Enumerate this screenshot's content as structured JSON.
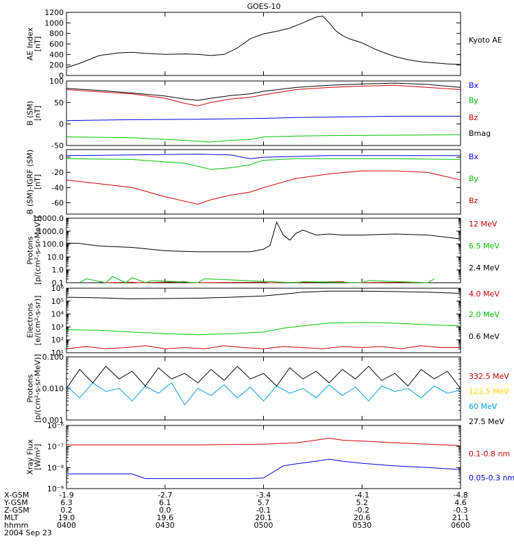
{
  "title": "GOES-10",
  "date_label": "2004 Sep 23",
  "colors": {
    "black": "#000000",
    "red": "#cc0000",
    "green": "#00c000",
    "blue": "#0000dd",
    "yellow": "#ffd700",
    "cyan": "#00a0e0"
  },
  "chart_data": [
    {
      "id": "ae",
      "type": "line",
      "ylabel": "AE Index\n[nT]",
      "yscale": "linear",
      "ylim": [
        0,
        1200
      ],
      "yticks": [
        0,
        200,
        400,
        600,
        800,
        1000,
        1200
      ],
      "ytick_labels": [
        "0",
        "200",
        "400",
        "600",
        "800",
        "1000",
        "1200"
      ],
      "series": [
        {
          "name": "Kyoto AE",
          "color": "black",
          "x": [
            0,
            2,
            5,
            8,
            10,
            12,
            15,
            18,
            20,
            22,
            24,
            26,
            28,
            30,
            32,
            34,
            36,
            38,
            39,
            40,
            41,
            42,
            43,
            44,
            45,
            46,
            47,
            48,
            50,
            52,
            54,
            56,
            58,
            60
          ],
          "y": [
            150,
            230,
            380,
            430,
            440,
            420,
            400,
            410,
            400,
            380,
            400,
            520,
            700,
            790,
            840,
            900,
            1000,
            1110,
            1130,
            1000,
            850,
            760,
            700,
            660,
            620,
            560,
            500,
            450,
            360,
            300,
            260,
            240,
            220,
            210
          ]
        }
      ]
    },
    {
      "id": "b",
      "type": "line",
      "ylabel": "B (SM)\n[nT]",
      "yscale": "linear",
      "ylim": [
        -50,
        100
      ],
      "yticks": [
        -50,
        0,
        50,
        100
      ],
      "ytick_labels": [
        "-50",
        "0",
        "50",
        "100"
      ],
      "series": [
        {
          "name": "Bx",
          "color": "blue",
          "x": [
            0,
            10,
            20,
            25,
            30,
            35,
            40,
            50,
            60
          ],
          "y": [
            8,
            10,
            11,
            12,
            13,
            15,
            16,
            18,
            18
          ]
        },
        {
          "name": "By",
          "color": "green",
          "x": [
            0,
            10,
            18,
            22,
            25,
            28,
            30,
            35,
            40,
            50,
            60
          ],
          "y": [
            -30,
            -32,
            -38,
            -42,
            -38,
            -36,
            -30,
            -28,
            -27,
            -26,
            -25
          ]
        },
        {
          "name": "Bz",
          "color": "red",
          "x": [
            0,
            5,
            10,
            15,
            18,
            20,
            22,
            25,
            28,
            30,
            35,
            40,
            45,
            50,
            55,
            60
          ],
          "y": [
            80,
            75,
            70,
            60,
            48,
            42,
            50,
            58,
            62,
            68,
            80,
            85,
            88,
            90,
            85,
            80
          ]
        },
        {
          "name": "Bmag",
          "color": "black",
          "x": [
            0,
            5,
            10,
            15,
            18,
            20,
            22,
            25,
            28,
            30,
            35,
            40,
            45,
            50,
            55,
            60
          ],
          "y": [
            83,
            78,
            72,
            65,
            58,
            55,
            60,
            66,
            70,
            76,
            85,
            90,
            93,
            95,
            92,
            85
          ]
        }
      ]
    },
    {
      "id": "bdiff",
      "type": "line",
      "ylabel": "B (SM)-IGRF (SM)\n[nT]",
      "yscale": "linear",
      "ylim": [
        -75,
        10
      ],
      "yticks": [
        -60,
        -40,
        -20,
        0
      ],
      "ytick_labels": [
        "-60",
        "-40",
        "-20",
        "0"
      ],
      "series": [
        {
          "name": "Bx",
          "color": "blue",
          "x": [
            0,
            10,
            20,
            25,
            28,
            30,
            35,
            40,
            50,
            60
          ],
          "y": [
            2,
            3,
            4,
            3,
            -2,
            0,
            1,
            2,
            2,
            2
          ]
        },
        {
          "name": "By",
          "color": "green",
          "x": [
            0,
            10,
            18,
            22,
            25,
            28,
            30,
            35,
            40,
            50,
            60
          ],
          "y": [
            -2,
            -3,
            -8,
            -16,
            -14,
            -10,
            -4,
            -2,
            -2,
            -2,
            -3
          ]
        },
        {
          "name": "Bz",
          "color": "red",
          "x": [
            0,
            5,
            10,
            15,
            18,
            20,
            22,
            25,
            28,
            30,
            35,
            40,
            45,
            50,
            55,
            60
          ],
          "y": [
            -30,
            -35,
            -40,
            -52,
            -58,
            -62,
            -56,
            -50,
            -46,
            -40,
            -28,
            -22,
            -18,
            -18,
            -20,
            -30
          ]
        }
      ]
    },
    {
      "id": "protons",
      "type": "line",
      "ylabel": "Protons\n[p/(cm²-s-sr-MeV)]",
      "yscale": "log",
      "ylim": [
        0.1,
        10000
      ],
      "yticks": [
        0.1,
        1,
        10,
        100,
        1000,
        10000
      ],
      "ytick_labels": [
        "0.1",
        "1.0",
        "10.0",
        "100.0",
        "1000.0",
        "10000.0"
      ],
      "series": [
        {
          "name": "12 MeV",
          "color": "red",
          "x": [
            5,
            6,
            10,
            11,
            18,
            19,
            30,
            31,
            42,
            43,
            52,
            53
          ],
          "y": [
            0.12,
            0.1,
            0.11,
            0.1,
            0.12,
            0.1,
            0.11,
            0.1,
            0.12,
            0.1,
            0.11,
            0.1
          ]
        },
        {
          "name": "6.5 MeV",
          "color": "green",
          "x": [
            2,
            3,
            6,
            7,
            9,
            10,
            12,
            13,
            20,
            21,
            35,
            36,
            45,
            46,
            55,
            56
          ],
          "y": [
            0.1,
            0.2,
            0.1,
            0.3,
            0.1,
            0.25,
            0.1,
            0.15,
            0.1,
            0.2,
            0.1,
            0.12,
            0.1,
            0.15,
            0.1,
            0.2
          ]
        },
        {
          "name": "2.4 MeV",
          "color": "black",
          "x": [
            0,
            2,
            5,
            8,
            10,
            15,
            20,
            25,
            28,
            30,
            31,
            32,
            33,
            34,
            35,
            36,
            38,
            40,
            42,
            45,
            50,
            55,
            60
          ],
          "y": [
            120,
            110,
            70,
            60,
            55,
            30,
            25,
            25,
            25,
            40,
            80,
            5000,
            500,
            200,
            700,
            1200,
            500,
            600,
            500,
            500,
            600,
            500,
            250
          ]
        }
      ]
    },
    {
      "id": "electrons",
      "type": "line",
      "ylabel": "Electrons\n[e/(cm²-s-sr)]",
      "yscale": "log",
      "ylim": [
        10,
        1000000
      ],
      "yticks": [
        10,
        100,
        1000,
        10000,
        100000,
        1000000
      ],
      "ytick_labels": [
        "10¹",
        "10²",
        "10³",
        "10⁴",
        "10⁵",
        "10⁶"
      ],
      "series": [
        {
          "name": "4.0 MeV",
          "color": "red",
          "x": [
            0,
            3,
            6,
            9,
            12,
            15,
            18,
            21,
            24,
            27,
            30,
            33,
            36,
            39,
            42,
            45,
            48,
            51,
            54,
            57,
            60
          ],
          "y": [
            20,
            30,
            20,
            25,
            35,
            20,
            25,
            20,
            35,
            25,
            20,
            30,
            25,
            20,
            30,
            25,
            30,
            20,
            35,
            25,
            25
          ]
        },
        {
          "name": "2.0 MeV",
          "color": "green",
          "x": [
            0,
            5,
            10,
            15,
            20,
            25,
            30,
            33,
            36,
            40,
            45,
            50,
            55,
            60
          ],
          "y": [
            600,
            550,
            400,
            300,
            250,
            300,
            400,
            800,
            1200,
            2000,
            2200,
            2000,
            1500,
            1200
          ]
        },
        {
          "name": "0.6 MeV",
          "color": "black",
          "x": [
            0,
            5,
            10,
            15,
            20,
            25,
            30,
            33,
            36,
            40,
            45,
            50,
            55,
            60
          ],
          "y": [
            200000,
            180000,
            150000,
            160000,
            170000,
            200000,
            250000,
            350000,
            500000,
            600000,
            600000,
            550000,
            500000,
            400000
          ]
        }
      ]
    },
    {
      "id": "hiprotons",
      "type": "line",
      "ylabel": "Protons\n[p/(cm²-s-sr-MeV)]",
      "yscale": "log",
      "ylim": [
        0.001,
        0.1
      ],
      "yticks": [
        0.001,
        0.01,
        0.1
      ],
      "ytick_labels": [
        "0.001",
        "0.010",
        "0.100"
      ],
      "series": [
        {
          "name": "332.5 MeV",
          "color": "red",
          "x": [],
          "y": []
        },
        {
          "name": "122.5 MeV",
          "color": "yellow",
          "x": [],
          "y": []
        },
        {
          "name": "60 MeV",
          "color": "cyan",
          "x": [
            0,
            2,
            4,
            6,
            8,
            10,
            12,
            14,
            16,
            18,
            20,
            22,
            24,
            26,
            28,
            30,
            32,
            34,
            36,
            38,
            40,
            42,
            44,
            46,
            48,
            50,
            52,
            54,
            56,
            58,
            60
          ],
          "y": [
            0.012,
            0.005,
            0.015,
            0.008,
            0.01,
            0.004,
            0.012,
            0.007,
            0.015,
            0.003,
            0.01,
            0.006,
            0.013,
            0.005,
            0.011,
            0.004,
            0.012,
            0.007,
            0.01,
            0.005,
            0.013,
            0.006,
            0.011,
            0.004,
            0.012,
            0.008,
            0.01,
            0.005,
            0.012,
            0.007,
            0.009
          ]
        },
        {
          "name": "27.5 MeV",
          "color": "black",
          "x": [
            0,
            2,
            4,
            6,
            8,
            10,
            12,
            14,
            16,
            18,
            20,
            22,
            24,
            26,
            28,
            30,
            32,
            34,
            36,
            38,
            40,
            42,
            44,
            46,
            48,
            50,
            52,
            54,
            56,
            58,
            60
          ],
          "y": [
            0.01,
            0.04,
            0.015,
            0.05,
            0.02,
            0.035,
            0.012,
            0.045,
            0.02,
            0.03,
            0.015,
            0.04,
            0.018,
            0.05,
            0.02,
            0.03,
            0.012,
            0.045,
            0.02,
            0.035,
            0.015,
            0.04,
            0.02,
            0.05,
            0.018,
            0.03,
            0.012,
            0.04,
            0.02,
            0.035,
            0.01
          ]
        }
      ]
    },
    {
      "id": "xray",
      "type": "line",
      "ylabel": "Xray Flux\n[W/m²]",
      "yscale": "log",
      "ylim": [
        1e-09,
        1e-06
      ],
      "yticks": [
        1e-09,
        1e-08,
        1e-07,
        1e-06
      ],
      "ytick_labels": [
        "10⁻⁹",
        "10⁻⁸",
        "10⁻⁷",
        "10⁻⁶"
      ],
      "series": [
        {
          "name": "0.1-0.8 nm",
          "color": "red",
          "x": [
            0,
            10,
            20,
            30,
            35,
            38,
            40,
            42,
            45,
            50,
            55,
            60
          ],
          "y": [
            1.2e-07,
            1.2e-07,
            1.2e-07,
            1.3e-07,
            1.5e-07,
            2e-07,
            2.5e-07,
            2e-07,
            1.8e-07,
            1.5e-07,
            1.3e-07,
            1.1e-07
          ]
        },
        {
          "name": "0.05-0.3 nm",
          "color": "blue",
          "x": [
            0,
            10,
            12,
            20,
            25,
            28,
            30,
            33,
            35,
            38,
            40,
            42,
            45,
            50,
            55,
            60
          ],
          "y": [
            5e-09,
            5e-09,
            3e-09,
            3e-09,
            3e-09,
            3e-09,
            3.2e-09,
            1.2e-08,
            1.5e-08,
            2e-08,
            2.5e-08,
            2e-08,
            1.6e-08,
            1.2e-08,
            1e-08,
            8e-09
          ]
        }
      ]
    }
  ],
  "x_axis": {
    "range": [
      0,
      60
    ],
    "ticks": [
      0,
      15,
      30,
      45,
      60
    ],
    "rows": [
      {
        "label": "X-GSM",
        "values": [
          "-1.9",
          "-2.7",
          "-3.4",
          "-4.1",
          "-4.8"
        ]
      },
      {
        "label": "Y-GSM",
        "values": [
          "6.3",
          "6.1",
          "5.7",
          "5.2",
          "4.6"
        ]
      },
      {
        "label": "Z-GSM",
        "values": [
          "0.2",
          "0.0",
          "-0.1",
          "-0.2",
          "-0.3"
        ]
      },
      {
        "label": "MLT",
        "values": [
          "19.0",
          "19.6",
          "20.1",
          "20.6",
          "21.1"
        ]
      },
      {
        "label": "hhmm",
        "values": [
          "0400",
          "0430",
          "0500",
          "0530",
          "0600"
        ]
      }
    ]
  }
}
